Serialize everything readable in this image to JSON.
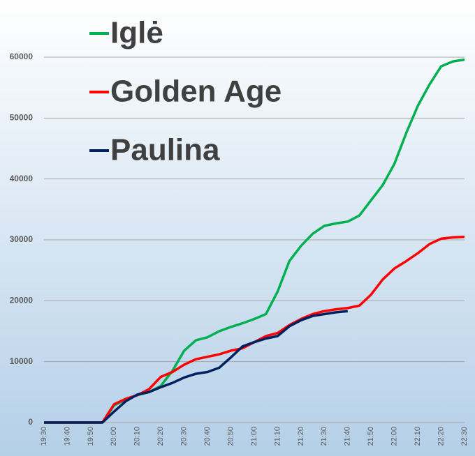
{
  "chart_data": {
    "type": "line",
    "categories": [
      "19:30",
      null,
      "19:40",
      null,
      "19:50",
      null,
      "20:00",
      null,
      "20:10",
      null,
      "20:20",
      null,
      "20:30",
      null,
      "20:40",
      null,
      "20:50",
      null,
      "21:00",
      null,
      "21:10",
      null,
      "21:20",
      null,
      "21:30",
      null,
      "21:40",
      null,
      "21:50",
      null,
      "22:00",
      null,
      "22:10",
      null,
      "22:20",
      null,
      "22:30"
    ],
    "series": [
      {
        "name": "Iglė",
        "color": "#00b050",
        "values": [
          0,
          0,
          0,
          0,
          0,
          0,
          2800,
          3800,
          4500,
          5000,
          6000,
          8500,
          11800,
          13500,
          14000,
          15000,
          15700,
          16300,
          17000,
          17800,
          21500,
          26500,
          29000,
          31000,
          32300,
          32700,
          33000,
          34000,
          36500,
          39000,
          42500,
          47500,
          52000,
          55500,
          58500,
          59300,
          59600
        ]
      },
      {
        "name": "Golden Age",
        "color": "#ff0000",
        "values": [
          0,
          0,
          0,
          0,
          0,
          0,
          3000,
          3900,
          4500,
          5500,
          7500,
          8300,
          9500,
          10400,
          10800,
          11200,
          11800,
          12200,
          13200,
          14200,
          14700,
          16000,
          17000,
          17800,
          18300,
          18600,
          18800,
          19200,
          21000,
          23500,
          25300,
          26500,
          27800,
          29300,
          30200,
          30400,
          30500
        ]
      },
      {
        "name": "Paulina",
        "color": "#002060",
        "values": [
          0,
          0,
          0,
          0,
          0,
          0,
          1800,
          3500,
          4600,
          5000,
          5800,
          6500,
          7400,
          8000,
          8300,
          9000,
          10700,
          12500,
          13200,
          13800,
          14200,
          15800,
          16800,
          17500,
          17800,
          18100,
          18300,
          null,
          null,
          null,
          null,
          null,
          null,
          null,
          null,
          null,
          null
        ]
      }
    ],
    "ylim": [
      0,
      60000
    ],
    "yticks": [
      0,
      10000,
      20000,
      30000,
      40000,
      50000,
      60000
    ],
    "grid": true
  }
}
